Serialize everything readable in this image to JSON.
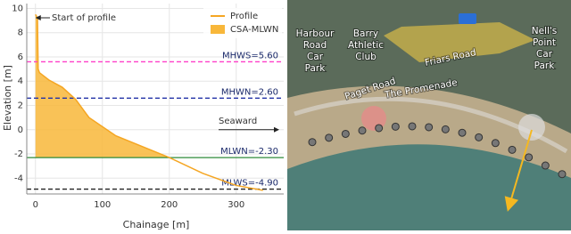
{
  "chart_data": {
    "type": "line",
    "x_label": "Chainage [m]",
    "y_label": "Elevation [m]",
    "xlim": [
      -13,
      371
    ],
    "ylim": [
      -5.3,
      10.4
    ],
    "xticks": [
      0,
      100,
      200,
      300
    ],
    "yticks": [
      10,
      8,
      6,
      4,
      2,
      0,
      -2,
      -4
    ],
    "grid": true,
    "x": [
      0,
      3,
      4,
      6,
      20,
      40,
      60,
      80,
      120,
      160,
      200,
      250,
      300,
      340
    ],
    "series": [
      {
        "name": "Profile",
        "color": "#f5a623",
        "values": [
          9.5,
          9.2,
          5.0,
          4.7,
          4.1,
          3.5,
          2.5,
          1.0,
          -0.5,
          -1.4,
          -2.3,
          -3.6,
          -4.6,
          -5.0
        ]
      },
      {
        "name": "CSA-MLWN",
        "color": "#f8b73a",
        "values": [
          9.5,
          9.2,
          5.0,
          4.7,
          4.1,
          3.5,
          2.5,
          1.0,
          -0.5,
          -1.4,
          -2.3,
          null,
          null,
          null
        ]
      }
    ],
    "reference_lines": [
      {
        "value": 5.6,
        "label": "MHWS=5.60",
        "color": "#ff3fc8",
        "dash": true
      },
      {
        "value": 2.6,
        "label": "MHWN=2.60",
        "color": "#2433a8",
        "dash": true
      },
      {
        "value": -2.3,
        "label": "MLWN=-2.30",
        "color": "#2e8b3a",
        "dash": false
      },
      {
        "value": -4.9,
        "label": "MLWS=-4.90",
        "color": "#222222",
        "dash": true
      }
    ],
    "annotations": [
      "Start of profile",
      "Seaward"
    ]
  },
  "map": {
    "labels": [
      [
        "Harbour",
        "Road",
        "Car",
        "Park"
      ],
      [
        "Barry",
        "Athletic",
        "Club"
      ],
      [
        "Friars Road"
      ],
      [
        "Paget Road"
      ],
      [
        "The Promenade"
      ],
      [
        "Nell's",
        "Point",
        "Car",
        "Park"
      ]
    ]
  }
}
